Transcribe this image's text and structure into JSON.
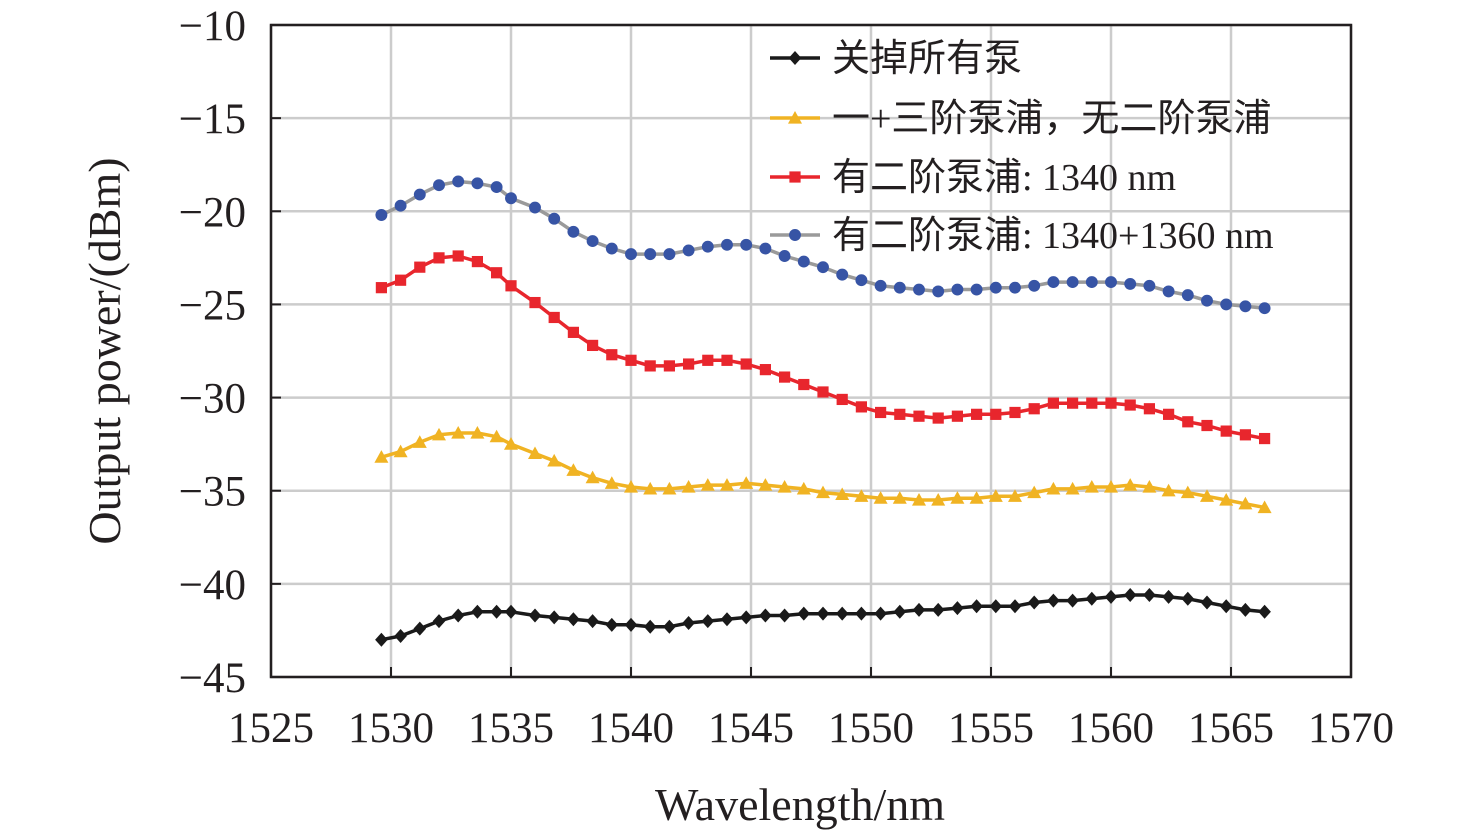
{
  "chart_data": {
    "type": "line",
    "xlabel": "Wavelength/nm",
    "ylabel": "Output power/(dBm)",
    "xlim": [
      1525,
      1570
    ],
    "ylim": [
      -45,
      -10
    ],
    "x_ticks": [
      "1525",
      "1530",
      "1535",
      "1540",
      "1545",
      "1550",
      "1555",
      "1560",
      "1565",
      "1570"
    ],
    "y_ticks": [
      "−10",
      "−15",
      "−20",
      "−25",
      "−30",
      "−35",
      "−40",
      "−45"
    ],
    "grid": true,
    "legend_position": "top-right",
    "x": [
      1529.6,
      1530.4,
      1531.2,
      1532.0,
      1532.8,
      1533.6,
      1534.4,
      1535.0,
      1536.0,
      1536.8,
      1537.6,
      1538.4,
      1539.2,
      1540.0,
      1540.8,
      1541.6,
      1542.4,
      1543.2,
      1544.0,
      1544.8,
      1545.6,
      1546.4,
      1547.2,
      1548.0,
      1548.8,
      1549.6,
      1550.4,
      1551.2,
      1552.0,
      1552.8,
      1553.6,
      1554.4,
      1555.2,
      1556.0,
      1556.8,
      1557.6,
      1558.4,
      1559.2,
      1560.0,
      1560.8,
      1561.6,
      1562.4,
      1563.2,
      1564.0,
      1564.8,
      1565.6,
      1566.4
    ],
    "series": [
      {
        "name": "关掉所有泵",
        "color": "#1a1a1a",
        "marker": "diamond",
        "values": [
          -43.0,
          -42.8,
          -42.4,
          -42.0,
          -41.7,
          -41.5,
          -41.5,
          -41.5,
          -41.7,
          -41.8,
          -41.9,
          -42.0,
          -42.2,
          -42.2,
          -42.3,
          -42.3,
          -42.1,
          -42.0,
          -41.9,
          -41.8,
          -41.7,
          -41.7,
          -41.6,
          -41.6,
          -41.6,
          -41.6,
          -41.6,
          -41.5,
          -41.4,
          -41.4,
          -41.3,
          -41.2,
          -41.2,
          -41.2,
          -41.0,
          -40.9,
          -40.9,
          -40.8,
          -40.7,
          -40.6,
          -40.6,
          -40.7,
          -40.8,
          -41.0,
          -41.2,
          -41.4,
          -41.5
        ]
      },
      {
        "name": "一+三阶泵浦，无二阶泵浦",
        "color": "#f0b323",
        "marker": "triangle",
        "values": [
          -33.2,
          -32.9,
          -32.4,
          -32.0,
          -31.9,
          -31.9,
          -32.1,
          -32.5,
          -33.0,
          -33.4,
          -33.9,
          -34.3,
          -34.6,
          -34.8,
          -34.9,
          -34.9,
          -34.8,
          -34.7,
          -34.7,
          -34.6,
          -34.7,
          -34.8,
          -34.9,
          -35.1,
          -35.2,
          -35.3,
          -35.4,
          -35.4,
          -35.5,
          -35.5,
          -35.4,
          -35.4,
          -35.3,
          -35.3,
          -35.1,
          -34.9,
          -34.9,
          -34.8,
          -34.8,
          -34.7,
          -34.8,
          -35.0,
          -35.1,
          -35.3,
          -35.5,
          -35.7,
          -35.9
        ]
      },
      {
        "name": "有二阶泵浦: 1340 nm",
        "color": "#e8262d",
        "marker": "square",
        "values": [
          -24.1,
          -23.7,
          -23.0,
          -22.5,
          -22.4,
          -22.7,
          -23.3,
          -24.0,
          -24.9,
          -25.7,
          -26.5,
          -27.2,
          -27.7,
          -28.0,
          -28.3,
          -28.3,
          -28.2,
          -28.0,
          -28.0,
          -28.2,
          -28.5,
          -28.9,
          -29.3,
          -29.7,
          -30.1,
          -30.5,
          -30.8,
          -30.9,
          -31.0,
          -31.1,
          -31.0,
          -30.9,
          -30.9,
          -30.8,
          -30.6,
          -30.3,
          -30.3,
          -30.3,
          -30.3,
          -30.4,
          -30.6,
          -30.9,
          -31.3,
          -31.5,
          -31.8,
          -32.0,
          -32.2
        ]
      },
      {
        "name": "有二阶泵浦: 1340+1360 nm",
        "color": "#3754a5",
        "line_color": "#9a9a9a",
        "marker": "circle",
        "values": [
          -20.2,
          -19.7,
          -19.1,
          -18.6,
          -18.4,
          -18.5,
          -18.7,
          -19.3,
          -19.8,
          -20.4,
          -21.1,
          -21.6,
          -22.0,
          -22.3,
          -22.3,
          -22.3,
          -22.1,
          -21.9,
          -21.8,
          -21.8,
          -22.0,
          -22.4,
          -22.7,
          -23.0,
          -23.4,
          -23.7,
          -24.0,
          -24.1,
          -24.2,
          -24.3,
          -24.2,
          -24.2,
          -24.1,
          -24.1,
          -24.0,
          -23.8,
          -23.8,
          -23.8,
          -23.8,
          -23.9,
          -24.0,
          -24.3,
          -24.5,
          -24.8,
          -25.0,
          -25.1,
          -25.2
        ]
      }
    ]
  }
}
